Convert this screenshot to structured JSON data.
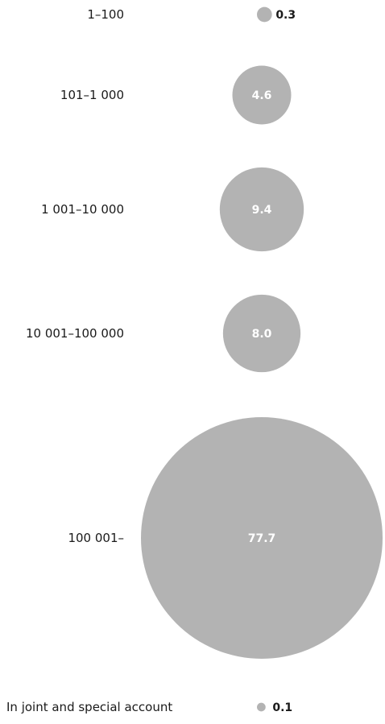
{
  "chart_data": {
    "type": "bubble",
    "unit": "%",
    "categories": [
      "1–100",
      "101–1 000",
      "1 001–10 000",
      "10 001–100 000",
      "100 001–",
      "In joint and special account"
    ],
    "values": [
      0.3,
      4.6,
      9.4,
      8.0,
      77.7,
      0.1
    ],
    "value_labels": [
      "0.3",
      "4.6",
      "9.4",
      "8.0",
      "77.7",
      "0.1"
    ],
    "colors": {
      "bubble": "#b3b3b3",
      "label_inside": "#ffffff",
      "label_outside": "#1a1a1a"
    }
  }
}
